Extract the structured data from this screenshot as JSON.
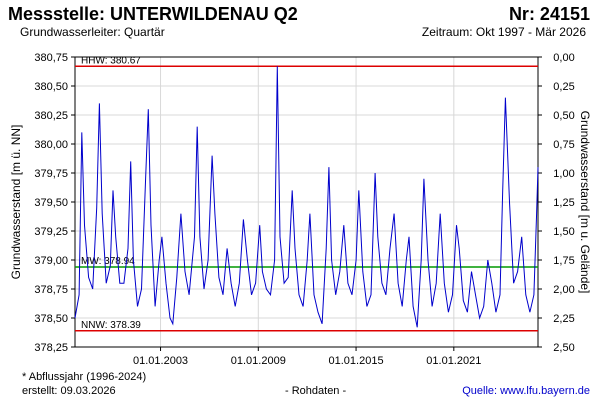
{
  "header": {
    "title": "Messstelle: UNTERWILDENAU Q2",
    "number": "Nr: 24151",
    "aquifer": "Grundwasserleiter: Quartär",
    "period": "Zeitraum: Okt 1997 - Mär 2026"
  },
  "footer": {
    "note": "* Abflussjahr (1996-2024)",
    "created": "erstellt:  09.03.2026",
    "rawdata": "- Rohdaten -",
    "source": "Quelle: www.lfu.bayern.de"
  },
  "colors": {
    "series": "#0000cc",
    "hhw": "#dd0000",
    "nnw": "#dd0000",
    "mw": "#009900"
  },
  "chart_data": {
    "type": "line",
    "ylabel_left": "Grundwasserstand [m ü. NN]",
    "ylabel_right": "Grundwasserstand [m u. Gelände]",
    "ylim": [
      378.25,
      380.75
    ],
    "yticks_left": [
      "378,25",
      "378,50",
      "378,75",
      "379,00",
      "379,25",
      "379,50",
      "379,75",
      "380,00",
      "380,25",
      "380,50",
      "380,75"
    ],
    "yticks_right": [
      "0,00",
      "0,25",
      "0,50",
      "0,75",
      "1,00",
      "1,25",
      "1,50",
      "1,75",
      "2,00",
      "2,25",
      "2,50"
    ],
    "xticks": [
      "01.01.2003",
      "01.01.2009",
      "01.01.2015",
      "01.01.2021"
    ],
    "xrange": [
      "1997-10",
      "2026-03"
    ],
    "grid": true,
    "reference_lines": [
      {
        "label": "HHW: 380.67",
        "value": 380.67
      },
      {
        "label": "MW: 378.94",
        "value": 378.94
      },
      {
        "label": "NNW: 378.39",
        "value": 378.39
      }
    ],
    "series": [
      {
        "values": [
          [
            "1997-10",
            378.5
          ],
          [
            "1998-01",
            378.7
          ],
          [
            "1998-03",
            380.1
          ],
          [
            "1998-05",
            379.3
          ],
          [
            "1998-08",
            378.85
          ],
          [
            "1998-11",
            378.75
          ],
          [
            "1999-02",
            379.45
          ],
          [
            "1999-04",
            380.35
          ],
          [
            "1999-06",
            379.4
          ],
          [
            "1999-09",
            378.8
          ],
          [
            "1999-12",
            378.95
          ],
          [
            "2000-02",
            379.6
          ],
          [
            "2000-04",
            379.2
          ],
          [
            "2000-07",
            378.8
          ],
          [
            "2000-10",
            378.8
          ],
          [
            "2001-01",
            379.1
          ],
          [
            "2001-03",
            379.85
          ],
          [
            "2001-05",
            379.0
          ],
          [
            "2001-08",
            378.6
          ],
          [
            "2001-11",
            378.75
          ],
          [
            "2002-02",
            379.7
          ],
          [
            "2002-04",
            380.3
          ],
          [
            "2002-06",
            379.3
          ],
          [
            "2002-09",
            378.6
          ],
          [
            "2002-12",
            379.0
          ],
          [
            "2003-02",
            379.2
          ],
          [
            "2003-05",
            378.8
          ],
          [
            "2003-08",
            378.5
          ],
          [
            "2003-10",
            378.45
          ],
          [
            "2004-01",
            378.85
          ],
          [
            "2004-04",
            379.4
          ],
          [
            "2004-07",
            378.9
          ],
          [
            "2004-10",
            378.7
          ],
          [
            "2005-02",
            379.2
          ],
          [
            "2005-04",
            380.15
          ],
          [
            "2005-06",
            379.2
          ],
          [
            "2005-09",
            378.75
          ],
          [
            "2005-12",
            379.0
          ],
          [
            "2006-03",
            379.9
          ],
          [
            "2006-05",
            379.4
          ],
          [
            "2006-08",
            378.85
          ],
          [
            "2006-11",
            378.7
          ],
          [
            "2007-02",
            379.1
          ],
          [
            "2007-05",
            378.8
          ],
          [
            "2007-08",
            378.6
          ],
          [
            "2007-11",
            378.8
          ],
          [
            "2008-02",
            379.35
          ],
          [
            "2008-05",
            379.0
          ],
          [
            "2008-08",
            378.7
          ],
          [
            "2008-11",
            378.8
          ],
          [
            "2009-02",
            379.3
          ],
          [
            "2009-04",
            378.9
          ],
          [
            "2009-07",
            378.75
          ],
          [
            "2009-10",
            378.7
          ],
          [
            "2010-01",
            379.0
          ],
          [
            "2010-03",
            380.67
          ],
          [
            "2010-05",
            379.2
          ],
          [
            "2010-08",
            378.8
          ],
          [
            "2010-11",
            378.85
          ],
          [
            "2011-02",
            379.6
          ],
          [
            "2011-04",
            379.1
          ],
          [
            "2011-07",
            378.7
          ],
          [
            "2011-10",
            378.6
          ],
          [
            "2012-01",
            379.0
          ],
          [
            "2012-03",
            379.4
          ],
          [
            "2012-06",
            378.7
          ],
          [
            "2012-09",
            378.55
          ],
          [
            "2012-12",
            378.45
          ],
          [
            "2013-03",
            379.1
          ],
          [
            "2013-05",
            379.8
          ],
          [
            "2013-07",
            379.0
          ],
          [
            "2013-10",
            378.7
          ],
          [
            "2014-01",
            378.9
          ],
          [
            "2014-04",
            379.3
          ],
          [
            "2014-07",
            378.8
          ],
          [
            "2014-10",
            378.7
          ],
          [
            "2015-01",
            379.0
          ],
          [
            "2015-03",
            379.6
          ],
          [
            "2015-06",
            378.9
          ],
          [
            "2015-09",
            378.6
          ],
          [
            "2015-12",
            378.7
          ],
          [
            "2016-03",
            379.75
          ],
          [
            "2016-05",
            379.2
          ],
          [
            "2016-08",
            378.8
          ],
          [
            "2016-11",
            378.7
          ],
          [
            "2017-02",
            379.1
          ],
          [
            "2017-05",
            379.4
          ],
          [
            "2017-08",
            378.8
          ],
          [
            "2017-11",
            378.6
          ],
          [
            "2018-02",
            379.0
          ],
          [
            "2018-04",
            379.2
          ],
          [
            "2018-07",
            378.6
          ],
          [
            "2018-10",
            378.42
          ],
          [
            "2019-01",
            379.0
          ],
          [
            "2019-03",
            379.7
          ],
          [
            "2019-06",
            379.0
          ],
          [
            "2019-09",
            378.6
          ],
          [
            "2019-12",
            378.8
          ],
          [
            "2020-03",
            379.4
          ],
          [
            "2020-06",
            378.8
          ],
          [
            "2020-09",
            378.55
          ],
          [
            "2020-12",
            378.7
          ],
          [
            "2021-03",
            379.3
          ],
          [
            "2021-05",
            379.1
          ],
          [
            "2021-08",
            378.65
          ],
          [
            "2021-11",
            378.55
          ],
          [
            "2022-02",
            378.9
          ],
          [
            "2022-05",
            378.7
          ],
          [
            "2022-08",
            378.5
          ],
          [
            "2022-11",
            378.6
          ],
          [
            "2023-02",
            379.0
          ],
          [
            "2023-05",
            378.8
          ],
          [
            "2023-08",
            378.55
          ],
          [
            "2023-11",
            378.7
          ],
          [
            "2024-01",
            379.6
          ],
          [
            "2024-03",
            380.4
          ],
          [
            "2024-06",
            379.5
          ],
          [
            "2024-09",
            378.8
          ],
          [
            "2024-12",
            378.9
          ],
          [
            "2025-03",
            379.2
          ],
          [
            "2025-06",
            378.7
          ],
          [
            "2025-09",
            378.55
          ],
          [
            "2025-12",
            378.7
          ],
          [
            "2026-02",
            379.4
          ],
          [
            "2026-03",
            379.8
          ]
        ]
      }
    ]
  }
}
